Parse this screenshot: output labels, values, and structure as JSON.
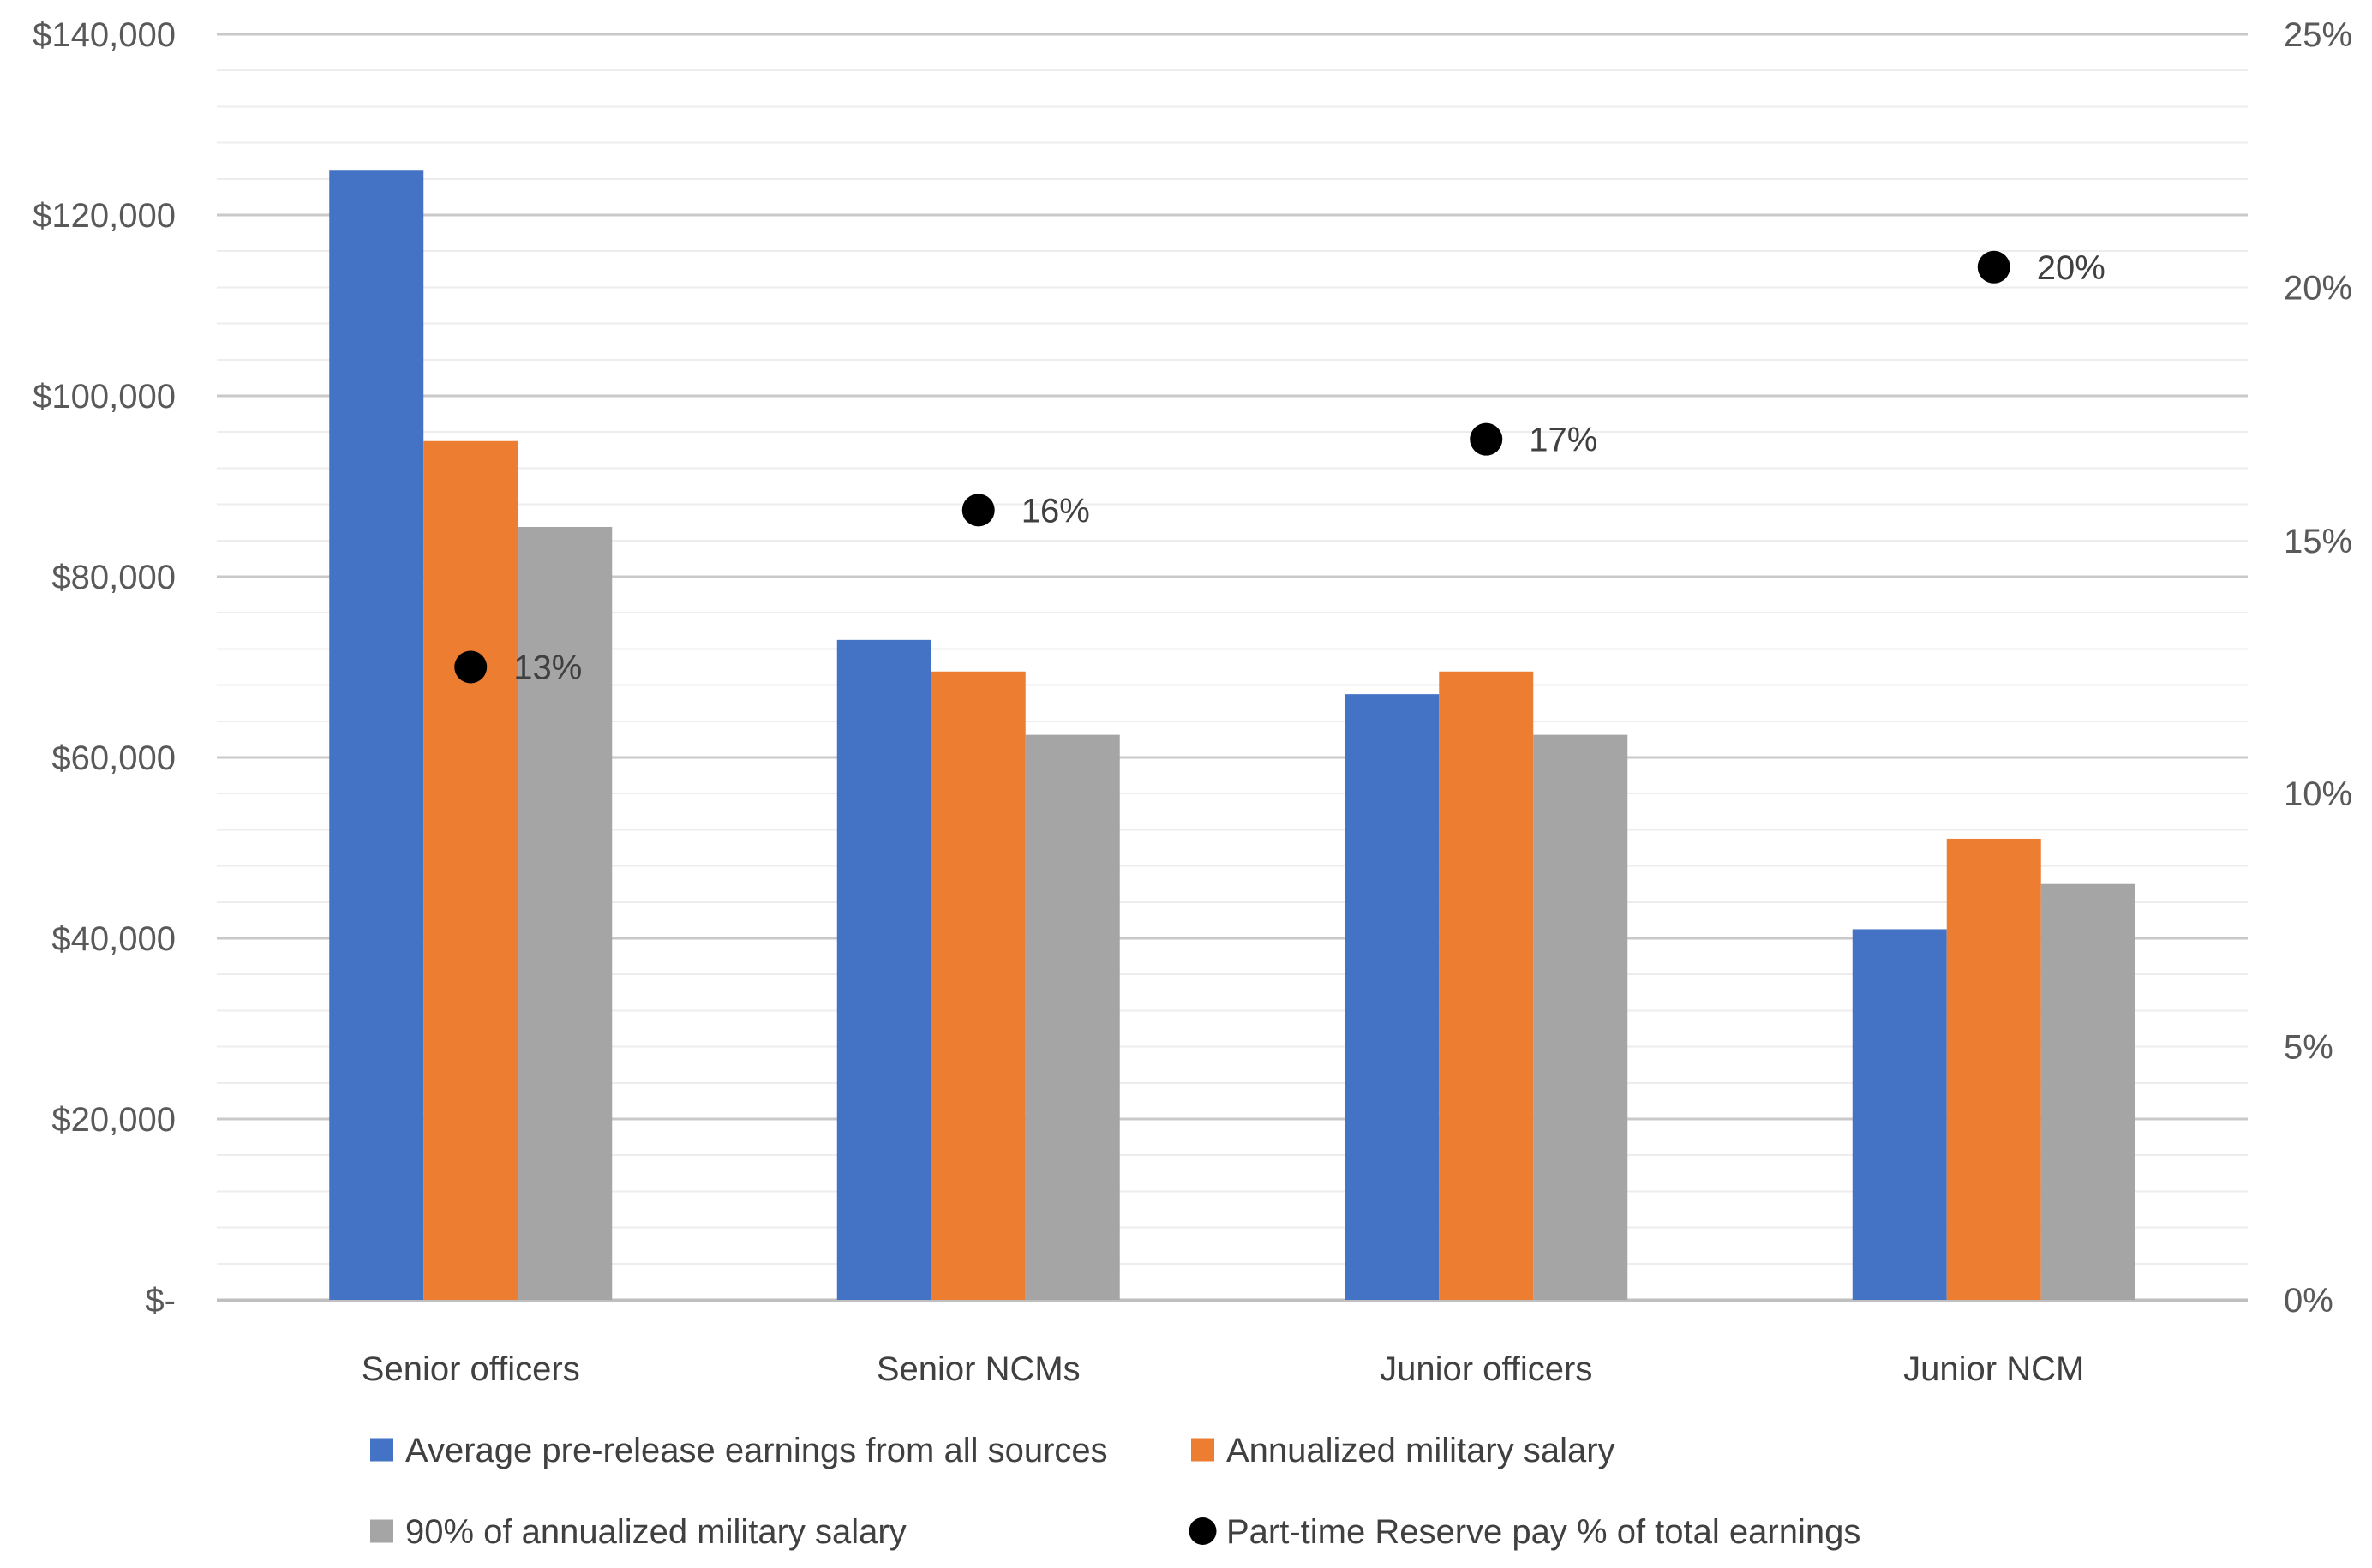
{
  "chart_data": {
    "type": "combo-bar-scatter",
    "title": "",
    "categories": [
      "Senior officers",
      "Senior NCMs",
      "Junior officers",
      "Junior NCM"
    ],
    "series": [
      {
        "name": "Average pre-release earnings from all sources",
        "type": "bar",
        "axis": "left",
        "color": "#4472C4",
        "values": [
          125000,
          73000,
          67000,
          41000
        ]
      },
      {
        "name": "Annualized military salary",
        "type": "bar",
        "axis": "left",
        "color": "#ED7D31",
        "values": [
          95000,
          69500,
          69500,
          51000
        ]
      },
      {
        "name": "90% of annualized military salary",
        "type": "bar",
        "axis": "left",
        "color": "#A5A5A5",
        "values": [
          85500,
          62500,
          62500,
          46000
        ]
      },
      {
        "name": "Part-time Reserve pay % of total earnings",
        "type": "scatter",
        "axis": "right",
        "color": "#000000",
        "values": [
          12.5,
          15.6,
          17.0,
          20.4
        ],
        "point_labels": [
          "13%",
          "16%",
          "17%",
          "20%"
        ]
      }
    ],
    "left_axis": {
      "min": 0,
      "max": 140000,
      "major_unit": 20000,
      "minor_unit": 4000,
      "tick_labels_top_to_bottom": [
        "$140,000",
        "$120,000",
        "$100,000",
        "$80,000",
        "$60,000",
        "$40,000",
        "$20,000",
        "$-"
      ]
    },
    "right_axis": {
      "min": 0,
      "max": 25,
      "major_unit": 5,
      "tick_labels_top_to_bottom": [
        "25%",
        "20%",
        "15%",
        "10%",
        "5%",
        "0%"
      ]
    },
    "grid": {
      "show_major": true,
      "show_minor": true,
      "major_color": "#C9C9C9",
      "minor_color": "#EDEDED",
      "baseline_color": "#BFBFBF"
    },
    "legend": {
      "position": "bottom",
      "rows": [
        [
          "Average pre-release earnings from all sources",
          "Annualized military salary"
        ],
        [
          "90% of annualized military salary",
          "Part-time Reserve pay % of total earnings"
        ]
      ]
    },
    "style": {
      "tick_text_color": "#595959",
      "label_text_color": "#404040",
      "background": "#FFFFFF"
    }
  }
}
